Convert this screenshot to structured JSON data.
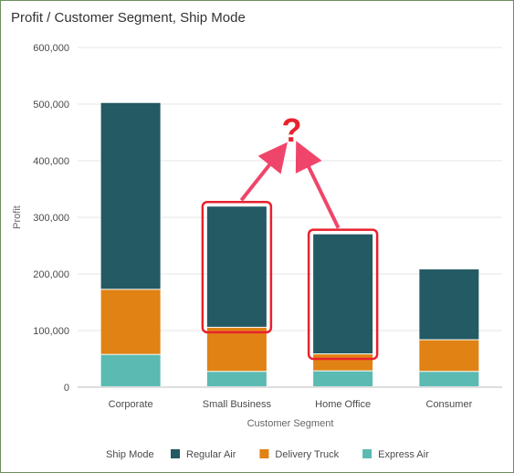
{
  "chart_data": {
    "type": "bar",
    "stacked": true,
    "title": "Profit / Customer Segment, Ship Mode",
    "xlabel": "Customer Segment",
    "ylabel": "Profit",
    "ylim": [
      0,
      600000
    ],
    "yticks": [
      0,
      100000,
      200000,
      300000,
      400000,
      500000,
      600000
    ],
    "ytick_labels": [
      "0",
      "100,000",
      "200,000",
      "300,000",
      "400,000",
      "500,000",
      "600,000"
    ],
    "grid": true,
    "legend_title": "Ship Mode",
    "legend_position": "bottom",
    "categories": [
      "Corporate",
      "Small Business",
      "Home Office",
      "Consumer"
    ],
    "series": [
      {
        "name": "Express Air",
        "color": "#5bbab2",
        "values": [
          57000,
          27000,
          28000,
          27000
        ]
      },
      {
        "name": "Delivery Truck",
        "color": "#e08214",
        "values": [
          115000,
          78000,
          30000,
          56000
        ]
      },
      {
        "name": "Regular Air",
        "color": "#235a63",
        "values": [
          330000,
          214000,
          212000,
          125000
        ]
      }
    ],
    "legend_order": [
      "Regular Air",
      "Delivery Truck",
      "Express Air"
    ],
    "annotations": {
      "text": "?",
      "color": "#e8222e",
      "highlighted_categories": [
        "Small Business",
        "Home Office"
      ]
    }
  }
}
